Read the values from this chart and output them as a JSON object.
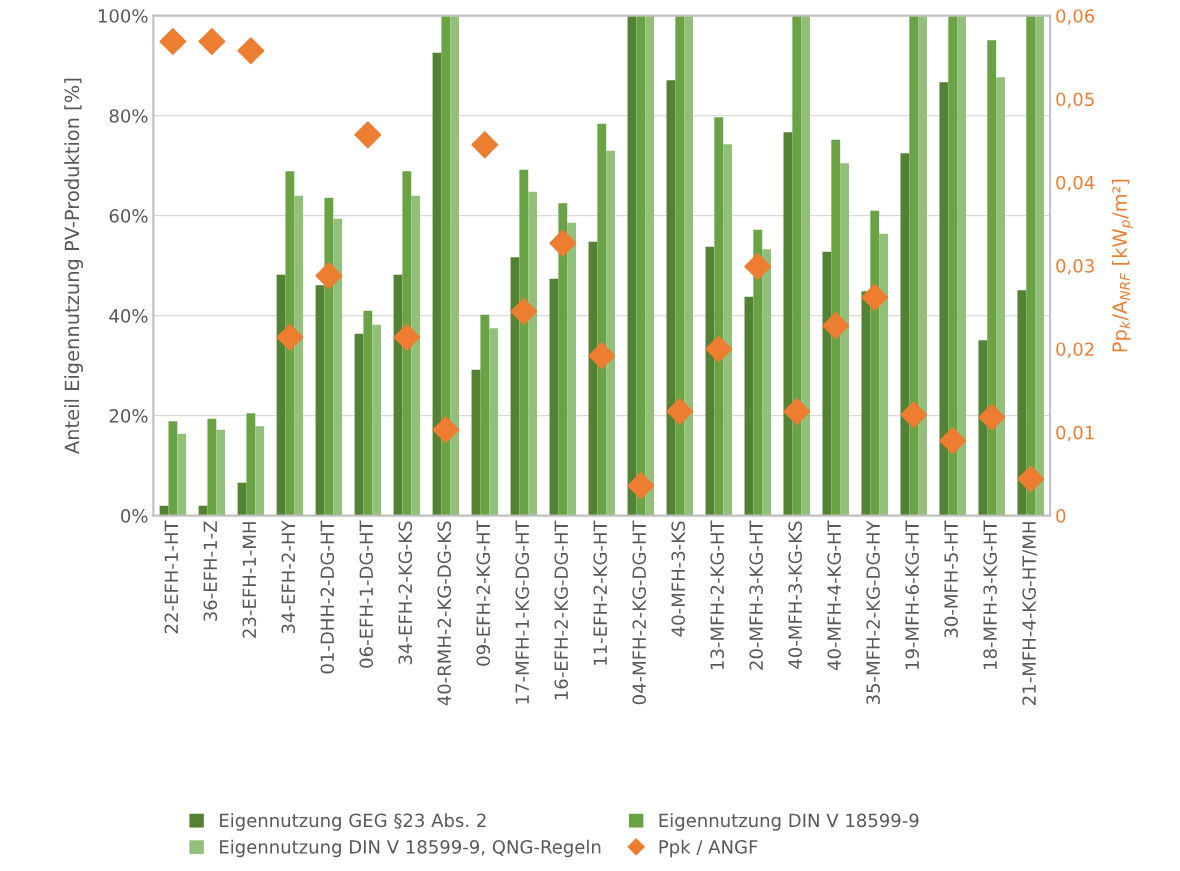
{
  "chart_data": {
    "type": "bar",
    "ylabel": "Anteil Eigennutzung PV-Produktion [%]",
    "y2label": "Pp$_{k}$/A$_{NRF}$ [kW$_{p}$/m²]",
    "categories": [
      "22-EFH-1-HT",
      "36-EFH-1-Z",
      "23-EFH-1-MH",
      "34-EFH-2-HY",
      "01-DHH-2-DG-HT",
      "06-EFH-1-DG-HT",
      "34-EFH-2-KG-KS",
      "40-RMH-2-KG-DG-KS",
      "09-EFH-2-KG-HT",
      "17-MFH-1-KG-DG-HT",
      "16-EFH-2-KG-DG-HT",
      "11-EFH-2-KG-HT",
      "04-MFH-2-KG-DG-HT",
      "40-MFH-3-KS",
      "13-MFH-2-KG-HT",
      "20-MFH-3-KG-HT",
      "40-MFH-3-KG-KS",
      "40-MFH-4-KG-HT",
      "35-MFH-2-KG-DG-HY",
      "19-MFH-6-KG-HT",
      "30-MFH-5-HT",
      "18-MFH-3-KG-HT",
      "21-MFH-4-KG-HT/MH"
    ],
    "series": [
      {
        "name": "Eigennutzung GEG §23 Abs. 2",
        "color": "#548235",
        "values": [
          2.0,
          2.0,
          6.6,
          48.2,
          46.1,
          36.4,
          48.2,
          92.6,
          29.2,
          51.7,
          47.4,
          54.8,
          100,
          87.1,
          53.8,
          43.8,
          76.7,
          52.8,
          44.9,
          72.5,
          86.7,
          35.1,
          45.1
        ]
      },
      {
        "name": "Eigennutzung DIN V 18599-9",
        "color": "#6aa343",
        "values": [
          18.9,
          19.4,
          20.5,
          68.9,
          63.6,
          41.0,
          68.9,
          100,
          40.2,
          69.2,
          62.5,
          78.4,
          100,
          100,
          79.7,
          57.2,
          100,
          75.2,
          61.0,
          100,
          100,
          95.1,
          100
        ]
      },
      {
        "name": "Eigennutzung DIN V 18599-9, QNG-Regeln",
        "color": "#92c07a",
        "values": [
          16.4,
          17.2,
          17.9,
          64.0,
          59.4,
          38.2,
          64.0,
          100,
          37.5,
          64.8,
          58.6,
          73.0,
          100,
          100,
          74.3,
          53.3,
          100,
          70.5,
          56.4,
          100,
          100,
          87.7,
          100
        ]
      },
      {
        "name": "Ppk / ANGF",
        "type": "scatter",
        "axis": "y2",
        "marker": "diamond",
        "color": "#ed7d31",
        "values": [
          0.0569,
          0.0569,
          0.0558,
          0.0214,
          0.0288,
          0.0457,
          0.0214,
          0.0103,
          0.0445,
          0.0245,
          0.0327,
          0.0192,
          0.0036,
          0.0125,
          0.02,
          0.0299,
          0.0125,
          0.0228,
          0.0262,
          0.0121,
          0.009,
          0.0118,
          0.0044
        ]
      }
    ],
    "ylim": [
      0,
      100
    ],
    "yticks": [
      {
        "value": 0,
        "label": "0%"
      },
      {
        "value": 20,
        "label": "20%"
      },
      {
        "value": 40,
        "label": "40%"
      },
      {
        "value": 60,
        "label": "60%"
      },
      {
        "value": 80,
        "label": "80%"
      },
      {
        "value": 100,
        "label": "100%"
      }
    ],
    "y2lim": [
      0,
      0.06
    ],
    "y2ticks": [
      0,
      {
        "value": 0.01,
        "label": "0,01"
      },
      {
        "value": 0.02,
        "label": "0,02"
      },
      {
        "value": 0.03,
        "label": "0,03"
      },
      {
        "value": 0.04,
        "label": "0,04"
      },
      {
        "value": 0.05,
        "label": "0,05"
      },
      {
        "value": 0.06,
        "label": "0,06"
      }
    ],
    "grid": "y",
    "legend": "bottom"
  }
}
